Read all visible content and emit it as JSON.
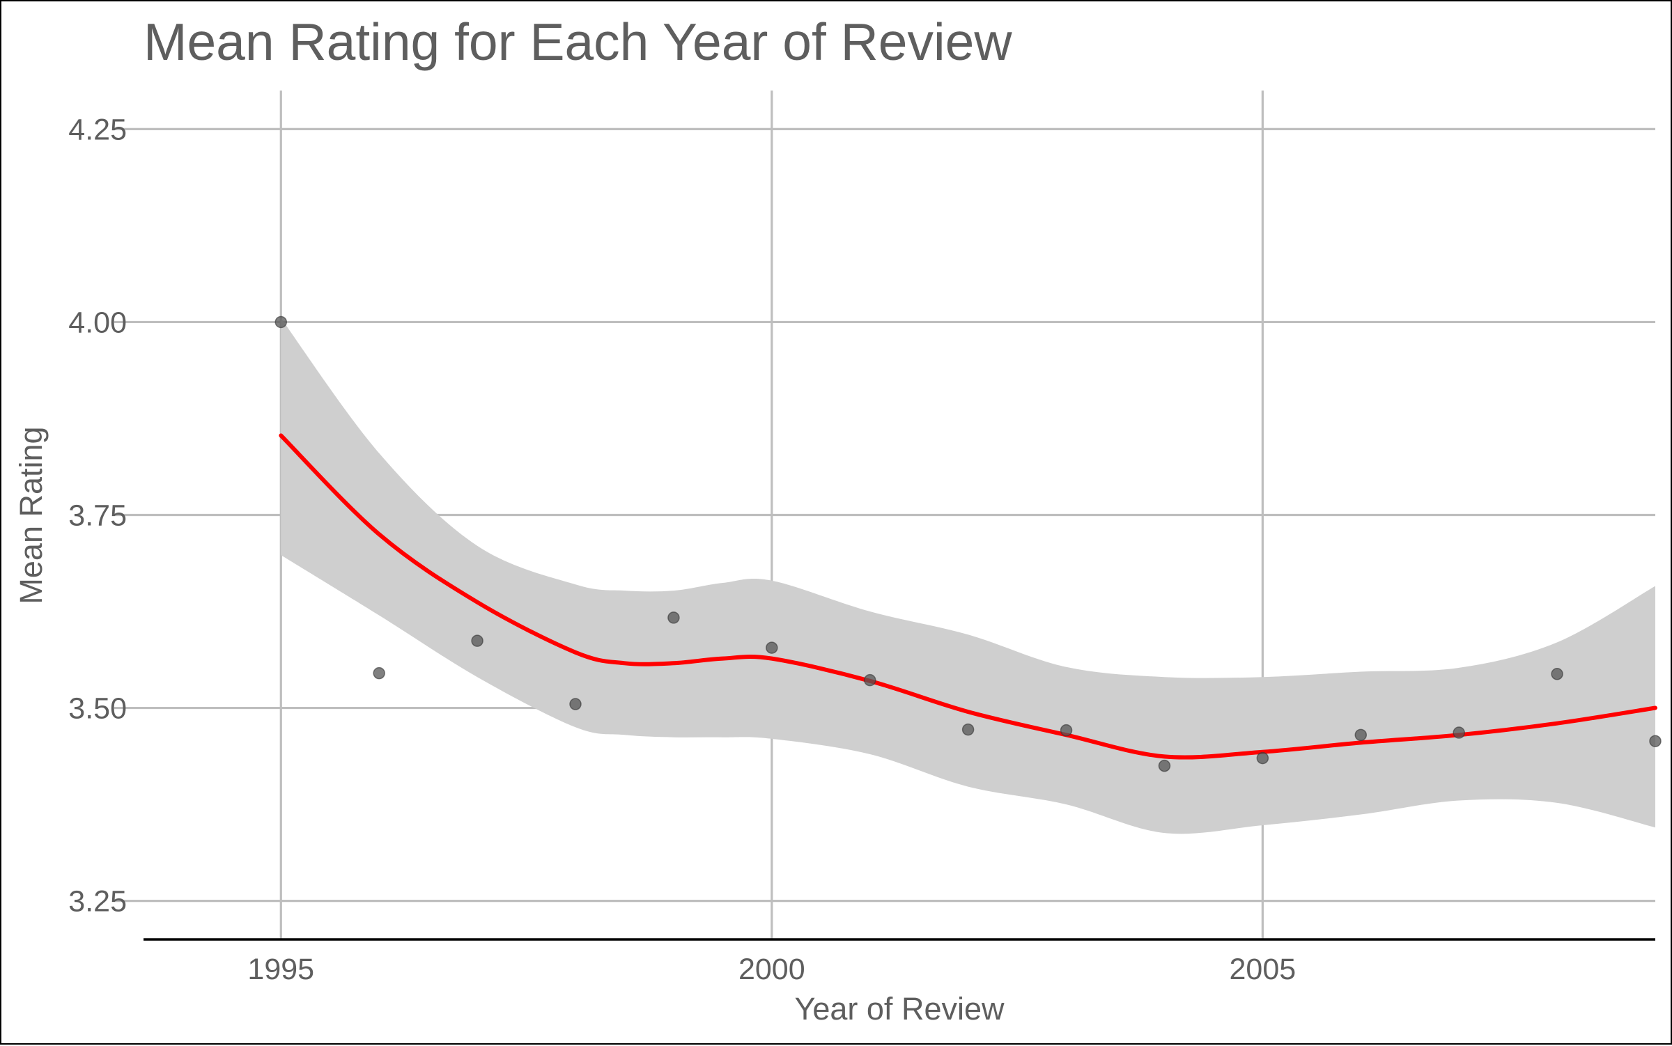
{
  "chart_data": {
    "type": "scatter",
    "title": "Mean Rating for Each Year of Review",
    "xlabel": "Year of Review",
    "ylabel": "Mean Rating",
    "xlim": [
      1993.6,
      2009.0
    ],
    "ylim": [
      3.2,
      4.3
    ],
    "x_ticks": [
      1995,
      2000,
      2005
    ],
    "x_tick_labels": [
      "1995",
      "2000",
      "2005"
    ],
    "y_ticks": [
      3.25,
      3.5,
      3.75,
      4.0,
      4.25
    ],
    "y_tick_labels": [
      "3.25",
      "3.50",
      "3.75",
      "4.00",
      "4.25"
    ],
    "grid": true,
    "points": {
      "x": [
        1995,
        1996,
        1997,
        1998,
        1999,
        2000,
        2001,
        2002,
        2003,
        2004,
        2005,
        2006,
        2007,
        2008,
        2009
      ],
      "y": [
        4.0,
        3.545,
        3.587,
        3.505,
        3.617,
        3.578,
        3.536,
        3.472,
        3.471,
        3.425,
        3.435,
        3.465,
        3.468,
        3.544,
        3.457
      ]
    },
    "smooth_line": {
      "x": [
        1995,
        1996,
        1997,
        1998,
        1998.5,
        1999,
        1999.5,
        2000,
        2001,
        2002,
        2003,
        2004,
        2005,
        2006,
        2007,
        2008,
        2009
      ],
      "y": [
        3.853,
        3.725,
        3.637,
        3.572,
        3.558,
        3.558,
        3.564,
        3.564,
        3.535,
        3.495,
        3.465,
        3.437,
        3.443,
        3.455,
        3.465,
        3.48,
        3.5
      ]
    },
    "confidence_band": {
      "x": [
        1995,
        1996,
        1997,
        1998,
        1998.5,
        1999,
        1999.5,
        2000,
        2001,
        2002,
        2003,
        2004,
        2005,
        2006,
        2007,
        2008,
        2009
      ],
      "upper": [
        4.005,
        3.83,
        3.71,
        3.66,
        3.652,
        3.652,
        3.662,
        3.665,
        3.625,
        3.595,
        3.553,
        3.54,
        3.54,
        3.547,
        3.552,
        3.585,
        3.658
      ],
      "lower": [
        3.698,
        3.62,
        3.54,
        3.475,
        3.465,
        3.462,
        3.462,
        3.46,
        3.44,
        3.398,
        3.375,
        3.338,
        3.348,
        3.362,
        3.38,
        3.377,
        3.345
      ]
    },
    "colors": {
      "points": "#555555",
      "smooth_line": "#ff0000",
      "confidence_band": "#cfcfcf",
      "grid": "#bebebe",
      "text": "#5e5e5e",
      "axis": "#000000"
    }
  }
}
